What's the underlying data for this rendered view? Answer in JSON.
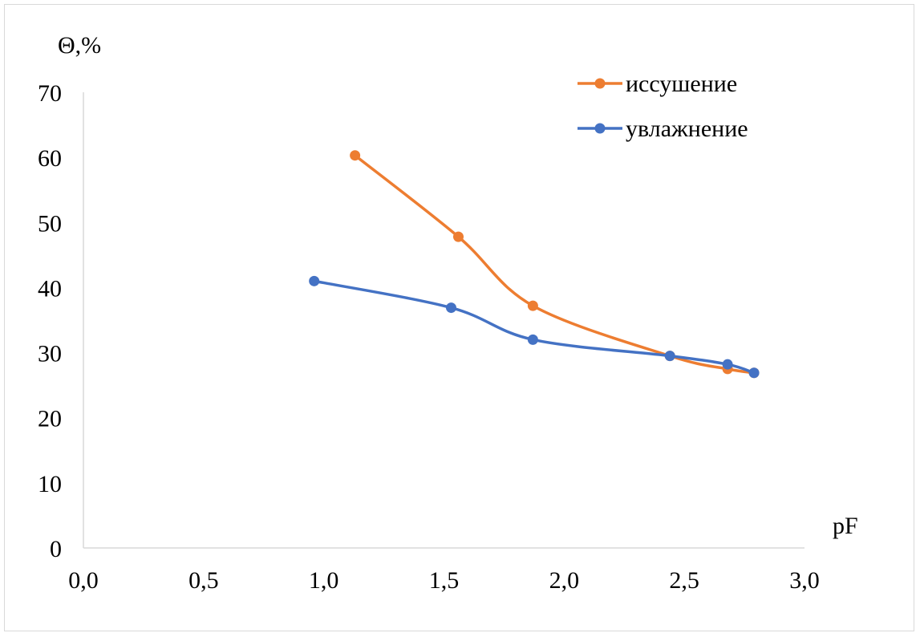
{
  "chart_data": {
    "type": "line",
    "smooth": true,
    "title": "",
    "xlabel": "pF",
    "ylabel": "Θ,%",
    "xlim": [
      0.0,
      3.0
    ],
    "ylim": [
      0,
      70
    ],
    "x_ticks": [
      "0,0",
      "0,5",
      "1,0",
      "1,5",
      "2,0",
      "2,5",
      "3,0"
    ],
    "y_ticks": [
      "0",
      "10",
      "20",
      "30",
      "40",
      "50",
      "60",
      "70"
    ],
    "grid": false,
    "legend_position": "top-right",
    "series": [
      {
        "name": "иссушение",
        "color": "#ed7d31",
        "x": [
          1.13,
          1.56,
          1.87,
          2.44,
          2.68,
          2.79
        ],
        "y": [
          60.3,
          47.8,
          37.2,
          29.5,
          27.5,
          26.9
        ]
      },
      {
        "name": "увлажнение",
        "color": "#4472c4",
        "x": [
          0.96,
          1.53,
          1.87,
          2.44,
          2.68,
          2.79
        ],
        "y": [
          41.0,
          36.9,
          32.0,
          29.5,
          28.2,
          26.9
        ]
      }
    ]
  }
}
